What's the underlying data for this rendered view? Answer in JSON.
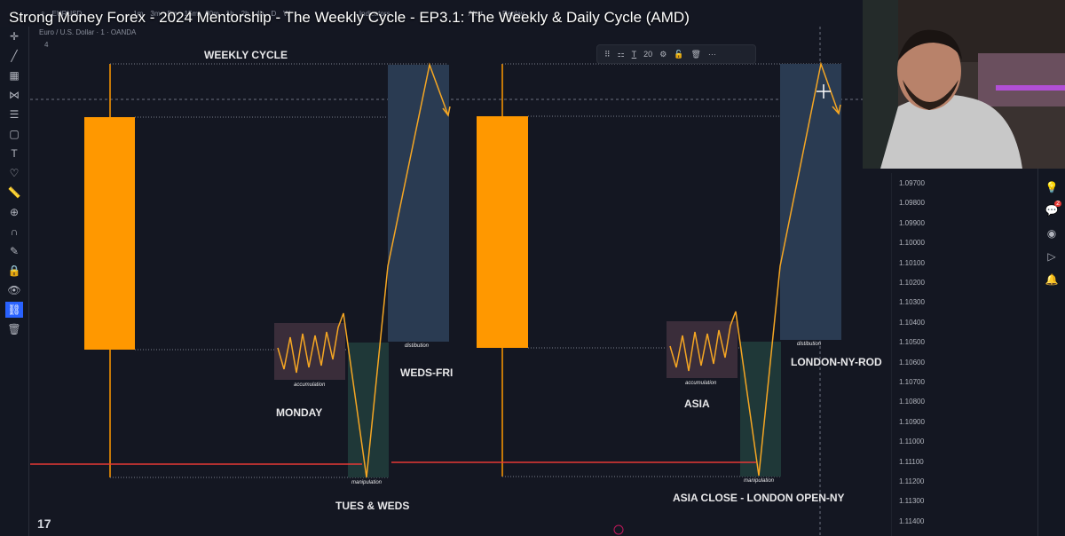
{
  "video": {
    "title": "Strong Money Forex - 2024 Mentorship - The Weekly Cycle - EP3.1: The Weekly & Daily Cycle (AMD)",
    "controls": [
      {
        "name": "watch-later-icon",
        "glyph": "🕓"
      },
      {
        "name": "share-icon",
        "glyph": "➦"
      },
      {
        "name": "info-icon",
        "glyph": "ⓘ"
      }
    ]
  },
  "chart_header": {
    "symbol": "EURUSD",
    "intervals": [
      "1m",
      "3m",
      "5m",
      "15m",
      "30m",
      "1h",
      "2h",
      "4h",
      "D",
      "W"
    ],
    "indicators_label": "Indicators",
    "alert_label": "Alert",
    "replay_label": "Replay",
    "instrument": "Euro / U.S. Dollar · 1 · OANDA",
    "count": "4"
  },
  "drawing_toolbar": {
    "font_size": "20"
  },
  "price_axis": [
    "1.09700",
    "1.09800",
    "1.09900",
    "1.10000",
    "1.10100",
    "1.10200",
    "1.10300",
    "1.10400",
    "1.10500",
    "1.10600",
    "1.10700",
    "1.10800",
    "1.10900",
    "1.11000",
    "1.11100",
    "1.11200",
    "1.11300",
    "1.11400"
  ],
  "diagram": {
    "weekly_title": "WEEKLY CYCLE",
    "monday": "MONDAY",
    "tues_weds": "TUES & WEDS",
    "weds_fri": "WEDS-FRI",
    "asia": "ASIA",
    "asia_close": "ASIA CLOSE - LONDON OPEN-NY",
    "london_ny": "LONDON-NY-ROD",
    "accumulation": "accumulation",
    "manipulation": "manipulation",
    "distribution": "distibution"
  },
  "colors": {
    "candle": "#ff9800",
    "path": "#f5a623",
    "accum_box": "#3a2d3a",
    "manip_box": "#1e3a3a",
    "dist_box": "#2a3b52",
    "red_line": "#e53935"
  },
  "right_panel": {
    "chat_badge": "2"
  },
  "tv_logo": "17"
}
